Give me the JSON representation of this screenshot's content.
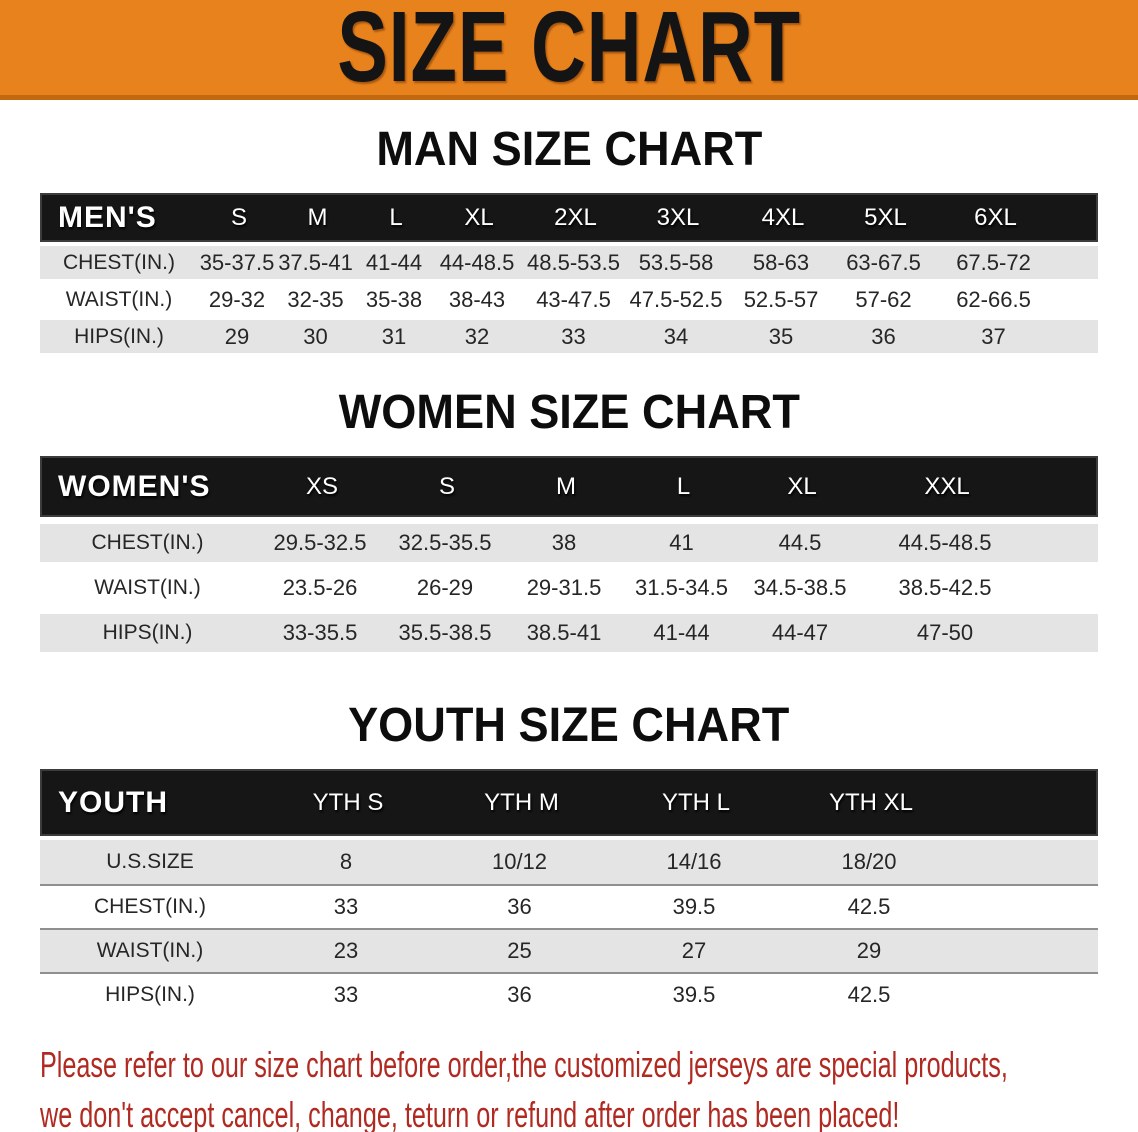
{
  "banner": {
    "title": "SIZE CHART",
    "bg_color": "#e8821c"
  },
  "sections": [
    {
      "heading": "MAN SIZE CHART",
      "header_label": "MEN'S",
      "columns": [
        "S",
        "M",
        "L",
        "XL",
        "2XL",
        "3XL",
        "4XL",
        "5XL",
        "6XL"
      ],
      "rows": [
        {
          "label": "CHEST(IN.)",
          "values": [
            "35-37.5",
            "37.5-41",
            "41-44",
            "44-48.5",
            "48.5-53.5",
            "53.5-58",
            "58-63",
            "63-67.5",
            "67.5-72"
          ]
        },
        {
          "label": "WAIST(IN.)",
          "values": [
            "29-32",
            "32-35",
            "35-38",
            "38-43",
            "43-47.5",
            "47.5-52.5",
            "52.5-57",
            "57-62",
            "62-66.5"
          ]
        },
        {
          "label": "HIPS(IN.)",
          "values": [
            "29",
            "30",
            "31",
            "32",
            "33",
            "34",
            "35",
            "36",
            "37"
          ]
        }
      ]
    },
    {
      "heading": "WOMEN SIZE CHART",
      "header_label": "WOMEN'S",
      "columns": [
        "XS",
        "S",
        "M",
        "L",
        "XL",
        "XXL"
      ],
      "rows": [
        {
          "label": "CHEST(IN.)",
          "values": [
            "29.5-32.5",
            "32.5-35.5",
            "38",
            "41",
            "44.5",
            "44.5-48.5"
          ]
        },
        {
          "label": "WAIST(IN.)",
          "values": [
            "23.5-26",
            "26-29",
            "29-31.5",
            "31.5-34.5",
            "34.5-38.5",
            "38.5-42.5"
          ]
        },
        {
          "label": "HIPS(IN.)",
          "values": [
            "33-35.5",
            "35.5-38.5",
            "38.5-41",
            "41-44",
            "44-47",
            "47-50"
          ]
        }
      ]
    },
    {
      "heading": "YOUTH SIZE CHART",
      "header_label": "YOUTH",
      "columns": [
        "YTH S",
        "YTH M",
        "YTH L",
        "YTH XL"
      ],
      "rows": [
        {
          "label": "U.S.SIZE",
          "values": [
            "8",
            "10/12",
            "14/16",
            "18/20"
          ]
        },
        {
          "label": "CHEST(IN.)",
          "values": [
            "33",
            "36",
            "39.5",
            "42.5"
          ]
        },
        {
          "label": "WAIST(IN.)",
          "values": [
            "23",
            "25",
            "27",
            "29"
          ]
        },
        {
          "label": "HIPS(IN.)",
          "values": [
            "33",
            "36",
            "39.5",
            "42.5"
          ]
        }
      ]
    }
  ],
  "disclaimer": {
    "line1": "Please refer to our size chart before order,the customized jerseys are special products,",
    "line2": "we don't accept cancel, change, teturn or refund after order has been placed!",
    "color": "#b02a22"
  }
}
